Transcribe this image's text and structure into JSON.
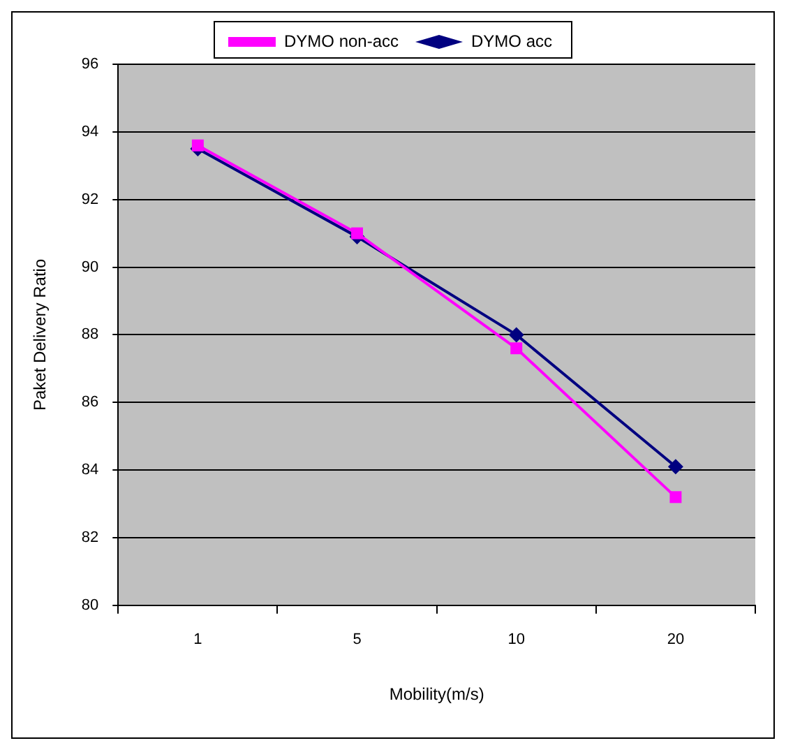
{
  "chart_data": {
    "type": "line",
    "xlabel": "Mobility(m/s)",
    "ylabel": "Paket Delivery Ratio",
    "categories": [
      "1",
      "5",
      "10",
      "20"
    ],
    "series": [
      {
        "name": "DYMO acc",
        "color": "#000080",
        "marker": "diamond",
        "values": [
          93.5,
          90.9,
          88.0,
          84.1
        ]
      },
      {
        "name": "DYMO non-acc",
        "color": "#ff00ff",
        "marker": "square",
        "values": [
          93.6,
          91.0,
          87.6,
          83.2
        ]
      }
    ],
    "ylim": [
      80,
      96
    ],
    "yticks": [
      80,
      82,
      84,
      86,
      88,
      90,
      92,
      94,
      96
    ],
    "grid": "y",
    "legend": "top"
  }
}
